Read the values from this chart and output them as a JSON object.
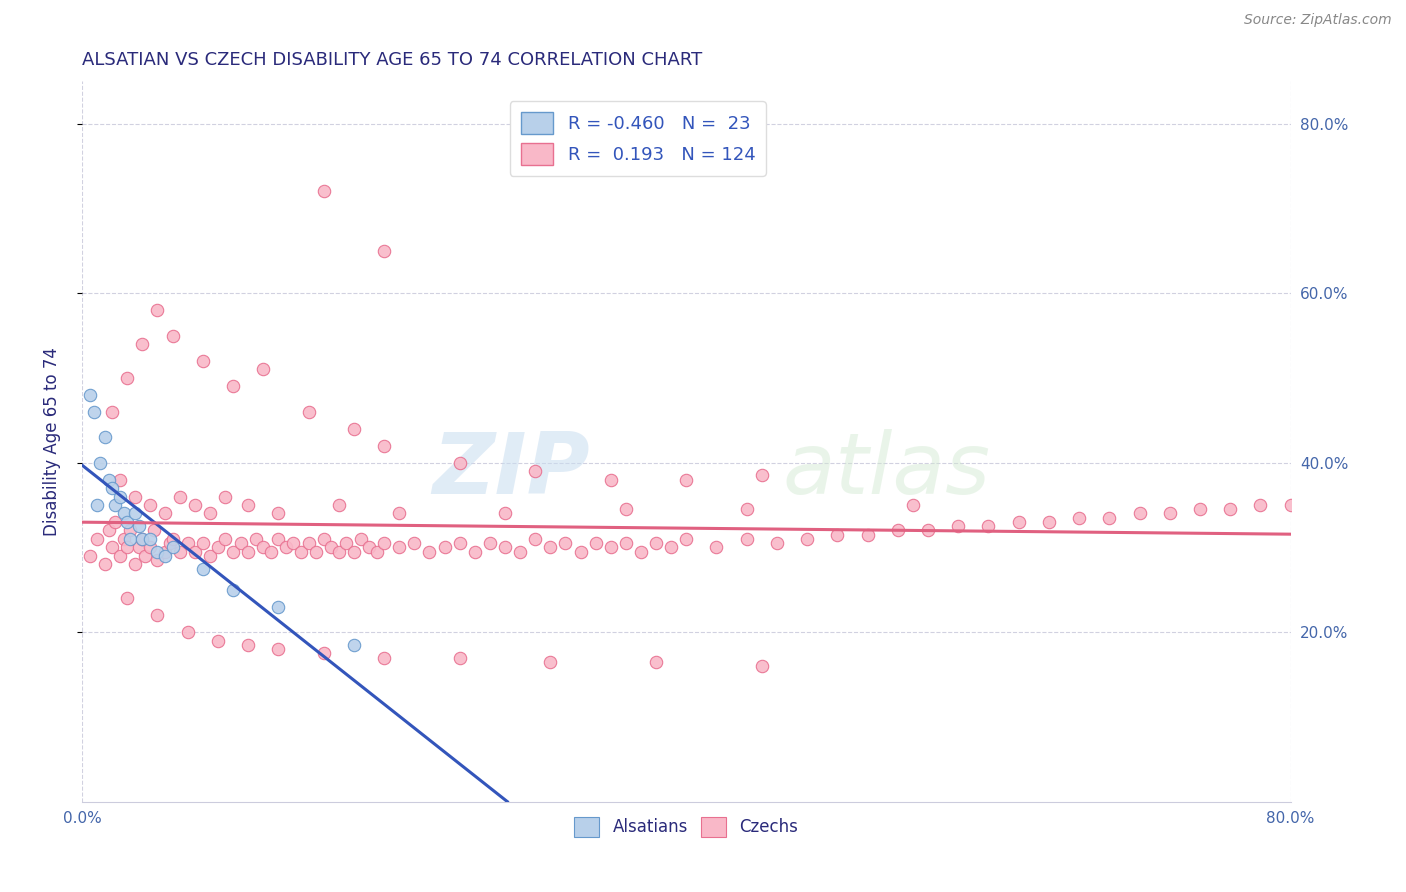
{
  "title": "ALSATIAN VS CZECH DISABILITY AGE 65 TO 74 CORRELATION CHART",
  "source_text": "Source: ZipAtlas.com",
  "ylabel": "Disability Age 65 to 74",
  "watermark_zip": "ZIP",
  "watermark_atlas": "atlas",
  "alsatian_R": -0.46,
  "alsatian_N": 23,
  "czech_R": 0.193,
  "czech_N": 124,
  "x_min": 0.0,
  "x_max": 0.8,
  "y_min": 0.0,
  "y_max": 0.85,
  "color_alsatian_fill": "#b8d0ea",
  "color_alsatian_edge": "#6699cc",
  "color_czech_fill": "#f9b8c8",
  "color_czech_edge": "#e87090",
  "color_blue_line": "#3355bb",
  "color_pink_line": "#e06080",
  "title_color": "#2a2a7a",
  "label_color": "#4466aa",
  "legend_text_color": "#3355bb",
  "background_color": "#ffffff",
  "grid_color": "#ccccdd",
  "x_tick_positions": [
    0.0,
    0.8
  ],
  "x_tick_labels": [
    "0.0%",
    "80.0%"
  ],
  "y_tick_positions": [
    0.2,
    0.4,
    0.6,
    0.8
  ],
  "y_tick_labels": [
    "20.0%",
    "40.0%",
    "60.0%",
    "80.0%"
  ],
  "alsatian_x": [
    0.005,
    0.008,
    0.01,
    0.012,
    0.015,
    0.018,
    0.02,
    0.022,
    0.025,
    0.028,
    0.03,
    0.032,
    0.035,
    0.038,
    0.04,
    0.045,
    0.05,
    0.055,
    0.06,
    0.08,
    0.1,
    0.13,
    0.18
  ],
  "alsatian_y": [
    0.48,
    0.46,
    0.35,
    0.4,
    0.43,
    0.38,
    0.37,
    0.35,
    0.36,
    0.34,
    0.33,
    0.31,
    0.34,
    0.325,
    0.31,
    0.31,
    0.295,
    0.29,
    0.3,
    0.275,
    0.25,
    0.23,
    0.185
  ],
  "czech_x": [
    0.005,
    0.01,
    0.015,
    0.018,
    0.02,
    0.022,
    0.025,
    0.028,
    0.03,
    0.032,
    0.035,
    0.038,
    0.04,
    0.042,
    0.045,
    0.048,
    0.05,
    0.055,
    0.058,
    0.06,
    0.065,
    0.07,
    0.075,
    0.08,
    0.085,
    0.09,
    0.095,
    0.1,
    0.105,
    0.11,
    0.115,
    0.12,
    0.125,
    0.13,
    0.135,
    0.14,
    0.145,
    0.15,
    0.155,
    0.16,
    0.165,
    0.17,
    0.175,
    0.18,
    0.185,
    0.19,
    0.195,
    0.2,
    0.21,
    0.22,
    0.23,
    0.24,
    0.25,
    0.26,
    0.27,
    0.28,
    0.29,
    0.3,
    0.31,
    0.32,
    0.33,
    0.34,
    0.35,
    0.36,
    0.37,
    0.38,
    0.39,
    0.4,
    0.42,
    0.44,
    0.46,
    0.48,
    0.5,
    0.52,
    0.54,
    0.56,
    0.58,
    0.6,
    0.62,
    0.64,
    0.66,
    0.68,
    0.7,
    0.72,
    0.74,
    0.76,
    0.78,
    0.8,
    0.02,
    0.03,
    0.04,
    0.05,
    0.06,
    0.08,
    0.1,
    0.12,
    0.15,
    0.18,
    0.2,
    0.25,
    0.3,
    0.35,
    0.4,
    0.45,
    0.025,
    0.035,
    0.045,
    0.055,
    0.065,
    0.075,
    0.085,
    0.095,
    0.11,
    0.13,
    0.17,
    0.21,
    0.28,
    0.36,
    0.44,
    0.55,
    0.03,
    0.05,
    0.07,
    0.09,
    0.11,
    0.13,
    0.16,
    0.2,
    0.25,
    0.31,
    0.38,
    0.45,
    0.16,
    0.2
  ],
  "czech_y": [
    0.29,
    0.31,
    0.28,
    0.32,
    0.3,
    0.33,
    0.29,
    0.31,
    0.3,
    0.32,
    0.28,
    0.3,
    0.31,
    0.29,
    0.3,
    0.32,
    0.285,
    0.295,
    0.305,
    0.31,
    0.295,
    0.305,
    0.295,
    0.305,
    0.29,
    0.3,
    0.31,
    0.295,
    0.305,
    0.295,
    0.31,
    0.3,
    0.295,
    0.31,
    0.3,
    0.305,
    0.295,
    0.305,
    0.295,
    0.31,
    0.3,
    0.295,
    0.305,
    0.295,
    0.31,
    0.3,
    0.295,
    0.305,
    0.3,
    0.305,
    0.295,
    0.3,
    0.305,
    0.295,
    0.305,
    0.3,
    0.295,
    0.31,
    0.3,
    0.305,
    0.295,
    0.305,
    0.3,
    0.305,
    0.295,
    0.305,
    0.3,
    0.31,
    0.3,
    0.31,
    0.305,
    0.31,
    0.315,
    0.315,
    0.32,
    0.32,
    0.325,
    0.325,
    0.33,
    0.33,
    0.335,
    0.335,
    0.34,
    0.34,
    0.345,
    0.345,
    0.35,
    0.35,
    0.46,
    0.5,
    0.54,
    0.58,
    0.55,
    0.52,
    0.49,
    0.51,
    0.46,
    0.44,
    0.42,
    0.4,
    0.39,
    0.38,
    0.38,
    0.385,
    0.38,
    0.36,
    0.35,
    0.34,
    0.36,
    0.35,
    0.34,
    0.36,
    0.35,
    0.34,
    0.35,
    0.34,
    0.34,
    0.345,
    0.345,
    0.35,
    0.24,
    0.22,
    0.2,
    0.19,
    0.185,
    0.18,
    0.175,
    0.17,
    0.17,
    0.165,
    0.165,
    0.16,
    0.72,
    0.65
  ]
}
